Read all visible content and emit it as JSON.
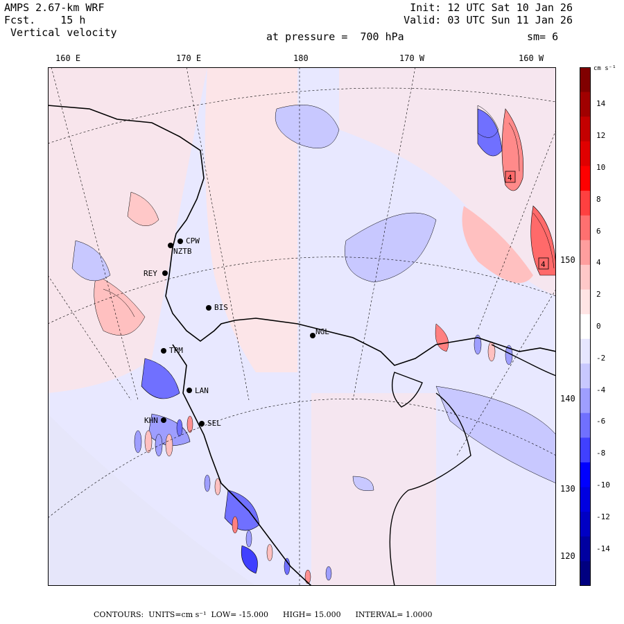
{
  "header": {
    "model": "AMPS 2.67-km WRF",
    "fcst_label": "Fcst.",
    "fcst_value": "15 h",
    "field": "Vertical velocity",
    "init": "Init: 12 UTC Sat 10 Jan 26",
    "valid": "Valid: 03 UTC Sun 11 Jan 26",
    "pressure": "at pressure =  700 hPa",
    "smooth": "sm= 6"
  },
  "longitude_labels": [
    "160 E",
    "170 E",
    "180",
    "170 W",
    "160 W"
  ],
  "latitude_labels": [
    "150 W",
    "140 W",
    "130 W",
    "120 W"
  ],
  "colorbar": {
    "units": "cm s⁻¹",
    "ticks": [
      "14",
      "12",
      "10",
      "8",
      "6",
      "4",
      "2",
      "0",
      "-2",
      "-4",
      "-6",
      "-8",
      "-10",
      "-12",
      "-14"
    ],
    "colors": [
      "#800000",
      "#a00000",
      "#c40000",
      "#e00000",
      "#ff0000",
      "#ff4040",
      "#ff7070",
      "#ff9e9e",
      "#ffc8c8",
      "#ffe4e4",
      "#ffffff",
      "#e6e6ff",
      "#c8c8ff",
      "#9e9eff",
      "#7070ff",
      "#4040ff",
      "#0000ff",
      "#0000e0",
      "#0000c4",
      "#0000a0",
      "#000080"
    ]
  },
  "stations": [
    "CPW",
    "NZTB",
    "REY",
    "BIS",
    "NGL",
    "TPM",
    "LAN",
    "KHN",
    "SEL"
  ],
  "markers": [
    "4",
    "4"
  ],
  "footer": {
    "contours": "CONTOURS:",
    "units": "UNITS=cm s⁻¹",
    "low": "LOW= -15.000",
    "high": "HIGH= 15.000",
    "interval": "INTERVAL= 1.0000"
  }
}
